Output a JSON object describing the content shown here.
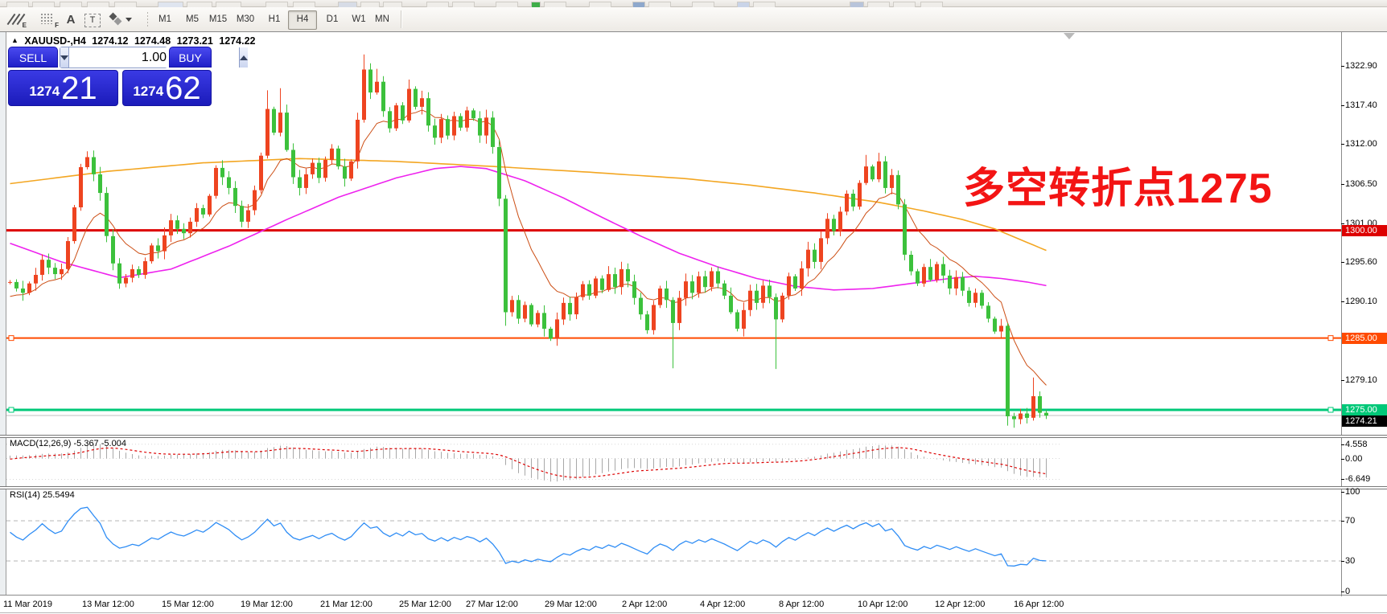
{
  "toolbar": {
    "tools": [
      {
        "name": "crosshair-lines-tool",
        "label": "E"
      },
      {
        "name": "fibonacci-grid-tool",
        "label": "F"
      },
      {
        "name": "text-label-tool",
        "label": "A"
      },
      {
        "name": "text-box-tool",
        "label": "T"
      },
      {
        "name": "arrows-tool",
        "label": ""
      }
    ],
    "timeframes": [
      "M1",
      "M5",
      "M15",
      "M30",
      "H1",
      "H4",
      "D1",
      "W1",
      "MN"
    ],
    "active_timeframe": "H4"
  },
  "chart": {
    "symbol_line": {
      "marker": "▲",
      "symbol": "XAUUSD-,H4",
      "open": "1274.12",
      "high": "1274.48",
      "low": "1273.21",
      "close": "1274.22"
    },
    "trade_panel": {
      "sell_label": "SELL",
      "buy_label": "BUY",
      "volume": "1.00",
      "sell_price_main": "1274",
      "sell_price_pips": "21",
      "buy_price_main": "1274",
      "buy_price_pips": "62"
    },
    "annotation": {
      "text": "多空转折点1275",
      "color": "#f31414"
    },
    "y_ticks": [
      "1322.90",
      "1317.40",
      "1312.00",
      "1306.50",
      "1301.00",
      "1295.60",
      "1290.10",
      "1279.10"
    ],
    "x_ticks": [
      "11 Mar 2019",
      "13 Mar 12:00",
      "15 Mar 12:00",
      "19 Mar 12:00",
      "21 Mar 12:00",
      "25 Mar 12:00",
      "27 Mar 12:00",
      "29 Mar 12:00",
      "2 Apr 12:00",
      "4 Apr 12:00",
      "8 Apr 12:00",
      "10 Apr 12:00",
      "12 Apr 12:00",
      "16 Apr 12:00"
    ],
    "levels": [
      {
        "price": 1300.0,
        "tag": "1300.00",
        "color": "#dd0000",
        "thickness": 3,
        "handles": false
      },
      {
        "price": 1285.0,
        "tag": "1285.00",
        "color": "#ff4a00",
        "thickness": 2,
        "handles": true
      },
      {
        "price": 1275.0,
        "tag": "1275.00",
        "color": "#00c878",
        "thickness": 3,
        "handles": true
      }
    ],
    "bid_line": {
      "price": 1274.21,
      "tag": "1274.21",
      "line_color": "#bfbfbf",
      "tag_color": "#000000"
    }
  },
  "chart_data": {
    "type": "candlestick",
    "symbol": "XAUUSD",
    "timeframe": "H4",
    "up_color": "#ee4420",
    "down_color": "#3cc13c",
    "prehistory_closes": [
      1296.0,
      1294.5,
      1293.0,
      1291.5,
      1290.0,
      1289.0,
      1288.0,
      1287.0,
      1286.2,
      1285.5,
      1284.8,
      1284.0,
      1283.4,
      1282.8,
      1282.2,
      1281.6,
      1281.2,
      1282.0,
      1283.0,
      1284.5,
      1286.0,
      1287.5,
      1288.5,
      1289.5,
      1290.5,
      1291.2,
      1291.8,
      1292.3,
      1292.6,
      1292.8
    ],
    "closes": [
      1292.8,
      1291.9,
      1291.3,
      1292.6,
      1293.8,
      1295.9,
      1294.8,
      1293.9,
      1294.6,
      1298.5,
      1303.2,
      1308.8,
      1310.2,
      1307.8,
      1305.2,
      1299.2,
      1295.4,
      1292.6,
      1293.4,
      1294.6,
      1293.8,
      1295.7,
      1297.9,
      1297.1,
      1299.3,
      1301.4,
      1300.2,
      1299.6,
      1301.2,
      1303.1,
      1302.2,
      1304.8,
      1308.7,
      1307.4,
      1305.9,
      1303.4,
      1301.2,
      1302.8,
      1305.6,
      1310.4,
      1316.9,
      1313.6,
      1316.4,
      1311.2,
      1307.4,
      1305.9,
      1307.8,
      1309.4,
      1307.3,
      1309.8,
      1311.4,
      1308.9,
      1307.2,
      1309.6,
      1315.4,
      1322.4,
      1319.2,
      1320.7,
      1316.6,
      1314.2,
      1317.4,
      1315.3,
      1319.7,
      1317.2,
      1318.4,
      1314.6,
      1312.9,
      1315.5,
      1313.2,
      1315.9,
      1314.3,
      1316.7,
      1315.6,
      1313.2,
      1315.7,
      1311.6,
      1304.4,
      1288.6,
      1290.3,
      1287.7,
      1289.6,
      1286.9,
      1288.5,
      1286.3,
      1284.9,
      1287.6,
      1289.9,
      1288.3,
      1290.7,
      1292.5,
      1290.9,
      1293.3,
      1291.7,
      1293.9,
      1292.1,
      1294.6,
      1292.9,
      1290.6,
      1288.3,
      1286.1,
      1289.6,
      1291.9,
      1290.3,
      1287.1,
      1290.6,
      1292.9,
      1291.3,
      1293.6,
      1292.1,
      1294.3,
      1292.6,
      1290.9,
      1288.6,
      1286.3,
      1288.9,
      1291.6,
      1289.9,
      1292.3,
      1290.7,
      1287.6,
      1290.9,
      1293.6,
      1291.9,
      1294.7,
      1297.3,
      1295.6,
      1298.9,
      1301.6,
      1299.9,
      1302.6,
      1305.1,
      1303.3,
      1306.6,
      1308.9,
      1307.1,
      1309.6,
      1305.9,
      1307.7,
      1303.6,
      1296.6,
      1294.3,
      1292.6,
      1294.9,
      1293.1,
      1295.3,
      1293.7,
      1291.9,
      1293.5,
      1291.6,
      1289.9,
      1291.3,
      1289.5,
      1287.7,
      1285.9,
      1286.7,
      1274.1,
      1273.7,
      1274.5,
      1273.9,
      1276.9,
      1274.6,
      1274.2
    ],
    "wick_overrides": {
      "12": [
        0.8,
        0.3
      ],
      "40": [
        2.6,
        0.4
      ],
      "42": [
        3.4,
        0.5
      ],
      "55": [
        2.1,
        0.4
      ],
      "57": [
        1.8,
        0.3
      ],
      "62": [
        1.3,
        0.3
      ],
      "77": [
        0.5,
        1.9
      ],
      "103": [
        0.4,
        6.3
      ],
      "119": [
        0.5,
        6.9
      ],
      "133": [
        1.6,
        0.3
      ],
      "135": [
        1.2,
        0.4
      ],
      "155": [
        0.4,
        1.3
      ],
      "156": [
        0.5,
        1.2
      ],
      "159": [
        2.6,
        0.4
      ]
    },
    "moving_averages": {
      "slow": {
        "color": "#f3a622",
        "waypoints": [
          [
            0,
            1306.5
          ],
          [
            15,
            1308.2
          ],
          [
            30,
            1309.4
          ],
          [
            45,
            1310.0
          ],
          [
            60,
            1309.6
          ],
          [
            75,
            1308.9
          ],
          [
            90,
            1308.1
          ],
          [
            105,
            1307.2
          ],
          [
            115,
            1306.3
          ],
          [
            125,
            1305.2
          ],
          [
            135,
            1303.9
          ],
          [
            142,
            1302.7
          ],
          [
            148,
            1301.5
          ],
          [
            153,
            1300.2
          ],
          [
            157,
            1298.7
          ],
          [
            161,
            1297.2
          ]
        ]
      },
      "medium": {
        "color": "#ee22ee",
        "waypoints": [
          [
            0,
            1298.2
          ],
          [
            8,
            1295.6
          ],
          [
            17,
            1293.4
          ],
          [
            25,
            1294.6
          ],
          [
            34,
            1297.8
          ],
          [
            43,
            1301.5
          ],
          [
            51,
            1304.6
          ],
          [
            60,
            1307.3
          ],
          [
            66,
            1308.6
          ],
          [
            70,
            1308.9
          ],
          [
            74,
            1308.6
          ],
          [
            80,
            1306.9
          ],
          [
            86,
            1304.5
          ],
          [
            92,
            1301.8
          ],
          [
            98,
            1299.2
          ],
          [
            104,
            1296.8
          ],
          [
            110,
            1294.9
          ],
          [
            116,
            1293.3
          ],
          [
            122,
            1292.2
          ],
          [
            128,
            1291.7
          ],
          [
            134,
            1291.9
          ],
          [
            140,
            1292.6
          ],
          [
            146,
            1293.3
          ],
          [
            150,
            1293.6
          ],
          [
            154,
            1293.3
          ],
          [
            158,
            1292.8
          ],
          [
            161,
            1292.3
          ]
        ]
      },
      "fast": {
        "color": "#cc4e14",
        "period": 10
      }
    }
  },
  "macd": {
    "label": "MACD(12,26,9)",
    "value_main": "-5.367",
    "value_signal": "-5.004",
    "ticks": [
      "4.558",
      "0.00",
      "-6.649"
    ],
    "tick_values": [
      4.558,
      0.0,
      -6.649
    ],
    "histogram_color": "#a8a8a8",
    "signal_color": "#dd0000",
    "fast_period": 12,
    "slow_period": 26,
    "signal_period": 9
  },
  "rsi": {
    "label": "RSI(14)",
    "value": "25.5494",
    "period": 14,
    "ticks": [
      "100",
      "70",
      "30",
      "0"
    ],
    "tick_values": [
      100,
      70,
      30,
      0
    ],
    "levels": [
      70,
      30
    ],
    "line_color": "#2f8df5"
  }
}
